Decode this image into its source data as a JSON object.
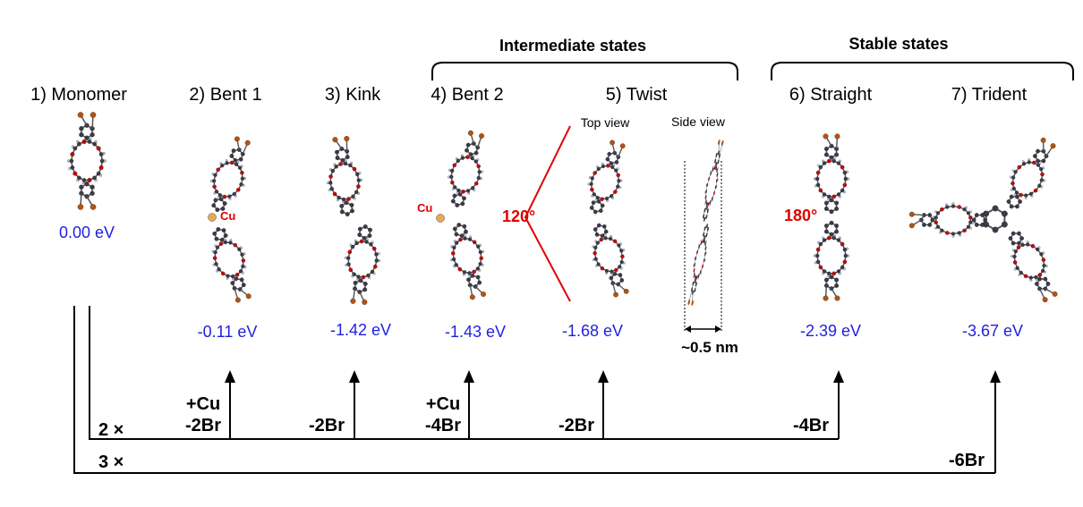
{
  "groups": {
    "intermediate": "Intermediate states",
    "stable": "Stable states"
  },
  "states": [
    {
      "label": "1) Monomer",
      "energy": "0.00 eV"
    },
    {
      "label": "2) Bent 1",
      "energy": "-0.11 eV"
    },
    {
      "label": "3) Kink",
      "energy": "-1.42 eV"
    },
    {
      "label": "4) Bent 2",
      "energy": "-1.43 eV"
    },
    {
      "label": "5) Twist",
      "energy": "-1.68 eV"
    },
    {
      "label": "6) Straight",
      "energy": "-2.39 eV"
    },
    {
      "label": "7) Trident",
      "energy": "-3.67 eV"
    }
  ],
  "views": {
    "top": "Top view",
    "side": "Side view"
  },
  "annotations": {
    "cu": "Cu",
    "angle_120": "120°",
    "angle_180": "180°",
    "scale": "~0.5 nm"
  },
  "steps": {
    "bent1_a": "+Cu",
    "bent1_b": "-2Br",
    "kink": "-2Br",
    "bent2_a": "+Cu",
    "bent2_b": "-4Br",
    "twist": "-2Br",
    "straight": "-4Br",
    "trident": "-6Br"
  },
  "multipliers": {
    "two": "2 ×",
    "three": "3 ×"
  },
  "colors": {
    "energy": "#1f1fe0",
    "highlight": "#e00000",
    "carbon": "#3a3a48",
    "oxygen": "#cc0000",
    "bromine": "#b5520f",
    "copper": "#e8a85a",
    "hydrogen": "#c6cce0"
  }
}
